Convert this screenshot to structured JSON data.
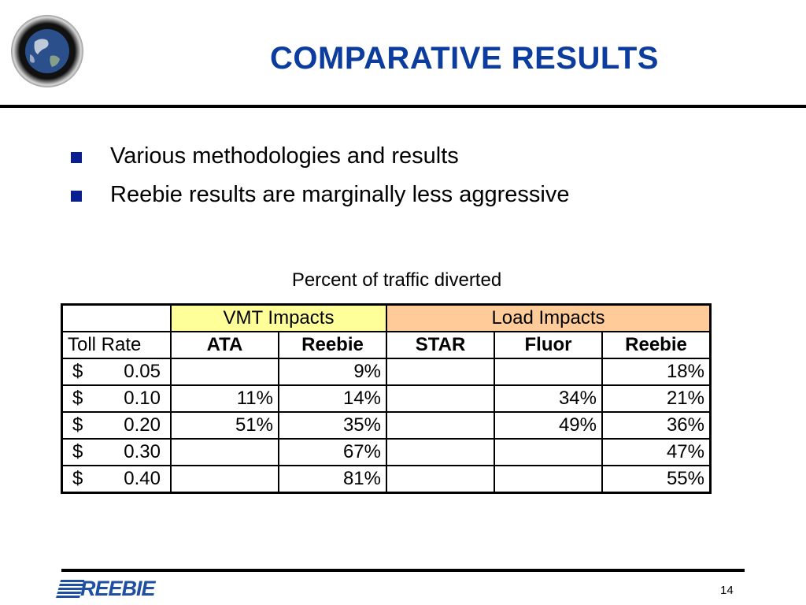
{
  "slide": {
    "title": "COMPARATIVE RESULTS",
    "page_number": "14",
    "logo_text": "REEBIE"
  },
  "bullets": [
    "Various methodologies and results",
    "Reebie results are marginally less aggressive"
  ],
  "table": {
    "caption": "Percent of traffic diverted",
    "group_headers": {
      "vmt": "VMT Impacts",
      "load": "Load Impacts"
    },
    "first_col_header": "Toll Rate",
    "columns": [
      "ATA",
      "Reebie",
      "STAR",
      "Fluor",
      "Reebie"
    ],
    "rows": [
      {
        "currency": "$",
        "amount": "0.05",
        "values": [
          "",
          "9%",
          "",
          "",
          "18%"
        ]
      },
      {
        "currency": "$",
        "amount": "0.10",
        "values": [
          "11%",
          "14%",
          "",
          "34%",
          "21%"
        ]
      },
      {
        "currency": "$",
        "amount": "0.20",
        "values": [
          "51%",
          "35%",
          "",
          "49%",
          "36%"
        ]
      },
      {
        "currency": "$",
        "amount": "0.30",
        "values": [
          "",
          "67%",
          "",
          "",
          "47%"
        ]
      },
      {
        "currency": "$",
        "amount": "0.40",
        "values": [
          "",
          "81%",
          "",
          "",
          "55%"
        ]
      }
    ]
  },
  "colors": {
    "title": "#0b3c9e",
    "bullet": "#0a1f8f",
    "vmt_header": "#ffff99",
    "load_header": "#ffcc99",
    "logo": "#1f4fa3"
  },
  "icons": {
    "logo_mark": "globe-icon"
  }
}
